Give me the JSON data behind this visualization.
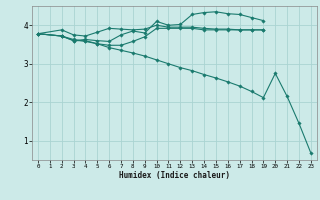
{
  "xlabel": "Humidex (Indice chaleur)",
  "bg_color": "#cceae8",
  "grid_color": "#aad4d2",
  "line_color": "#1a7a6e",
  "xlim": [
    -0.5,
    23.5
  ],
  "ylim": [
    0.5,
    4.5
  ],
  "yticks": [
    1,
    2,
    3,
    4
  ],
  "xticks": [
    0,
    1,
    2,
    3,
    4,
    5,
    6,
    7,
    8,
    9,
    10,
    11,
    12,
    13,
    14,
    15,
    16,
    17,
    18,
    19,
    20,
    21,
    22,
    23
  ],
  "series": [
    {
      "x": [
        0,
        2,
        3,
        4,
        5,
        6,
        7,
        8,
        9,
        10,
        11,
        12,
        13,
        14,
        15,
        16,
        17,
        18,
        19,
        20,
        21,
        22,
        23
      ],
      "y": [
        3.78,
        3.72,
        3.63,
        3.58,
        3.52,
        3.42,
        3.35,
        3.28,
        3.2,
        3.1,
        3.0,
        2.9,
        2.82,
        2.72,
        2.63,
        2.53,
        2.42,
        2.28,
        2.12,
        2.75,
        2.15,
        1.45,
        0.68
      ]
    },
    {
      "x": [
        0,
        2,
        3,
        4,
        5,
        6,
        7,
        8,
        9,
        10,
        11,
        12,
        13,
        14,
        15,
        16,
        17,
        18,
        19
      ],
      "y": [
        3.78,
        3.88,
        3.75,
        3.72,
        3.82,
        3.92,
        3.9,
        3.88,
        3.9,
        4.0,
        3.95,
        3.95,
        3.95,
        3.92,
        3.9,
        3.9,
        3.88,
        3.88,
        3.88
      ]
    },
    {
      "x": [
        0,
        2,
        3,
        4,
        5,
        6,
        7,
        8,
        9,
        10,
        11,
        12,
        13,
        14,
        15,
        16,
        17,
        18,
        19
      ],
      "y": [
        3.78,
        3.72,
        3.6,
        3.63,
        3.6,
        3.58,
        3.75,
        3.85,
        3.8,
        4.1,
        4.0,
        4.02,
        4.28,
        4.33,
        4.35,
        4.3,
        4.28,
        4.2,
        4.12
      ]
    },
    {
      "x": [
        0,
        2,
        3,
        4,
        5,
        6,
        7,
        8,
        9,
        10,
        11,
        12,
        13,
        14,
        15,
        16,
        17,
        18,
        19
      ],
      "y": [
        3.78,
        3.72,
        3.6,
        3.6,
        3.52,
        3.48,
        3.48,
        3.58,
        3.7,
        3.92,
        3.92,
        3.92,
        3.92,
        3.88,
        3.88,
        3.88,
        3.88,
        3.88,
        3.88
      ]
    }
  ]
}
